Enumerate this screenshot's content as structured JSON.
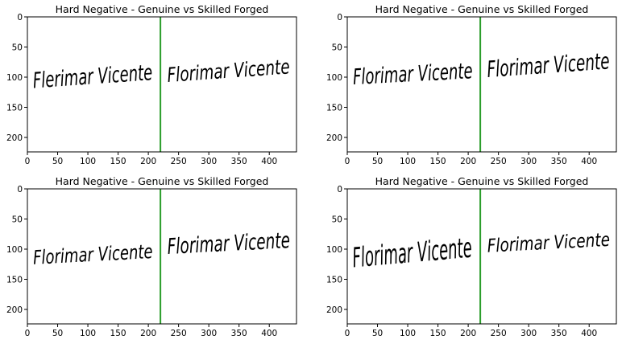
{
  "figure": {
    "panels": [
      {
        "title": "Hard Negative - Genuine vs Skilled Forged",
        "xticks": [
          "0",
          "50",
          "100",
          "150",
          "200",
          "250",
          "300",
          "350",
          "400"
        ],
        "yticks": [
          "0",
          "50",
          "100",
          "150",
          "200"
        ],
        "xlim": [
          0,
          445
        ],
        "ylim": [
          224,
          0
        ],
        "divider_x": 220,
        "left_signature": "Flerimar Vicente",
        "right_signature": "Florimar Vicente"
      },
      {
        "title": "Hard Negative - Genuine vs Skilled Forged",
        "xticks": [
          "0",
          "50",
          "100",
          "150",
          "200",
          "250",
          "300",
          "350",
          "400"
        ],
        "yticks": [
          "0",
          "50",
          "100",
          "150",
          "200"
        ],
        "xlim": [
          0,
          445
        ],
        "ylim": [
          224,
          0
        ],
        "divider_x": 220,
        "left_signature": "Florimar Vicente",
        "right_signature": "Florimar Vicente"
      },
      {
        "title": "Hard Negative - Genuine vs Skilled Forged",
        "xticks": [
          "0",
          "50",
          "100",
          "150",
          "200",
          "250",
          "300",
          "350",
          "400"
        ],
        "yticks": [
          "0",
          "50",
          "100",
          "150",
          "200"
        ],
        "xlim": [
          0,
          445
        ],
        "ylim": [
          224,
          0
        ],
        "divider_x": 220,
        "left_signature": "Florimar Vicente",
        "right_signature": "Florimar Vicente"
      },
      {
        "title": "Hard Negative - Genuine vs Skilled Forged",
        "xticks": [
          "0",
          "50",
          "100",
          "150",
          "200",
          "250",
          "300",
          "350",
          "400"
        ],
        "yticks": [
          "0",
          "50",
          "100",
          "150",
          "200"
        ],
        "xlim": [
          0,
          445
        ],
        "ylim": [
          224,
          0
        ],
        "divider_x": 220,
        "left_signature": "Florimar Vicente",
        "right_signature": "Florimar Vicente"
      }
    ]
  },
  "colors": {
    "divider": "#2a9d2a",
    "ink": "#000000",
    "axes": "#000000",
    "background": "#ffffff"
  }
}
